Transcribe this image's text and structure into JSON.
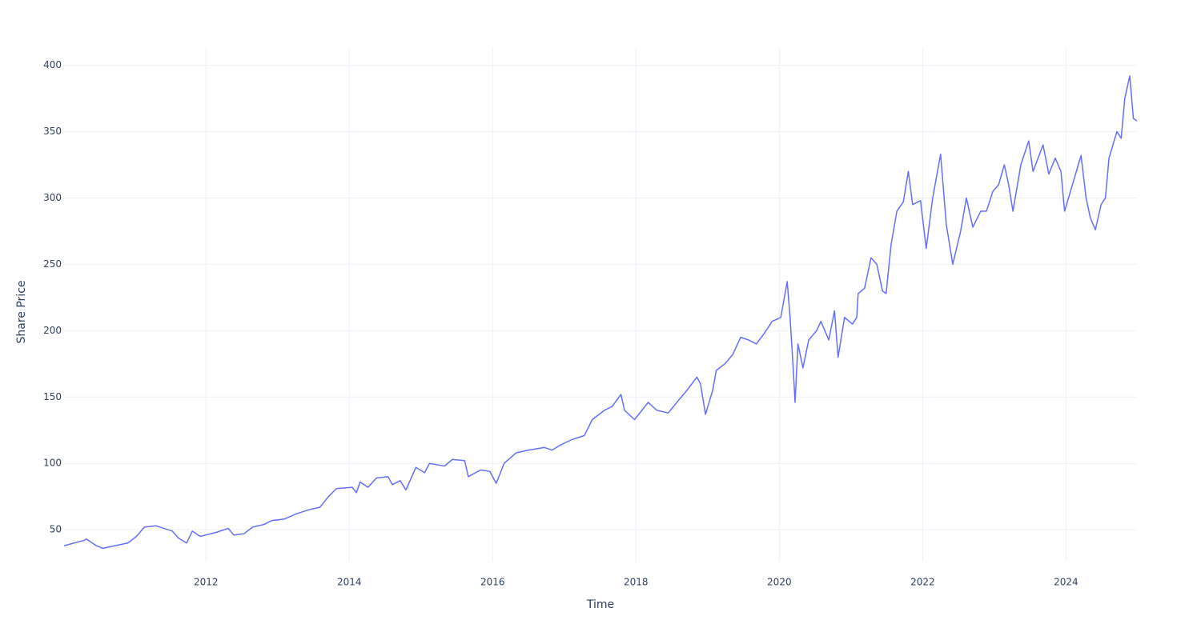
{
  "chart_data": {
    "type": "line",
    "x_label": "Time",
    "y_label": "Share Price",
    "x": [
      2010.02,
      2010.3,
      2010.33,
      2010.47,
      2010.56,
      2010.91,
      2011.03,
      2011.14,
      2011.3,
      2011.53,
      2011.61,
      2011.73,
      2011.81,
      2011.92,
      2012.14,
      2012.31,
      2012.39,
      2012.53,
      2012.65,
      2012.81,
      2012.92,
      2013.09,
      2013.26,
      2013.43,
      2013.59,
      2013.71,
      2013.82,
      2014.04,
      2014.1,
      2014.15,
      2014.26,
      2014.38,
      2014.54,
      2014.6,
      2014.71,
      2014.79,
      2014.88,
      2014.93,
      2015.05,
      2015.12,
      2015.33,
      2015.44,
      2015.61,
      2015.66,
      2015.83,
      2015.96,
      2016.05,
      2016.16,
      2016.33,
      2016.5,
      2016.72,
      2016.83,
      2016.95,
      2017.11,
      2017.28,
      2017.39,
      2017.56,
      2017.67,
      2017.79,
      2017.84,
      2017.98,
      2018.17,
      2018.29,
      2018.45,
      2018.57,
      2018.71,
      2018.85,
      2018.9,
      2018.97,
      2019.07,
      2019.12,
      2019.24,
      2019.35,
      2019.46,
      2019.57,
      2019.68,
      2019.79,
      2019.9,
      2020.02,
      2020.11,
      2020.15,
      2020.19,
      2020.22,
      2020.26,
      2020.33,
      2020.41,
      2020.52,
      2020.58,
      2020.69,
      2020.77,
      2020.82,
      2020.91,
      2021.02,
      2021.08,
      2021.1,
      2021.19,
      2021.28,
      2021.36,
      2021.44,
      2021.49,
      2021.56,
      2021.64,
      2021.73,
      2021.8,
      2021.86,
      2021.97,
      2022.05,
      2022.14,
      2022.25,
      2022.33,
      2022.42,
      2022.53,
      2022.61,
      2022.7,
      2022.81,
      2022.89,
      2022.98,
      2023.06,
      2023.14,
      2023.2,
      2023.26,
      2023.37,
      2023.48,
      2023.54,
      2023.68,
      2023.76,
      2023.85,
      2023.93,
      2023.98,
      2024.09,
      2024.21,
      2024.28,
      2024.34,
      2024.41,
      2024.49,
      2024.55,
      2024.6,
      2024.71,
      2024.77,
      2024.82,
      2024.89,
      2024.94,
      2024.99
    ],
    "series": [
      {
        "name": "Share Price",
        "color": "#636efa",
        "values": [
          38,
          42,
          43,
          38,
          36,
          40,
          45,
          52,
          53,
          49,
          44,
          40,
          49,
          45,
          48,
          51,
          46,
          47,
          52,
          54,
          57,
          58,
          62,
          65,
          67,
          75,
          81,
          82,
          78,
          86,
          82,
          89,
          90,
          84,
          87,
          80,
          91,
          97,
          93,
          100,
          98,
          103,
          102,
          90,
          95,
          94,
          85,
          100,
          108,
          110,
          112,
          110,
          114,
          118,
          121,
          133,
          140,
          143,
          152,
          140,
          133,
          146,
          140,
          138,
          146,
          155,
          165,
          160,
          137,
          155,
          170,
          175,
          182,
          195,
          193,
          190,
          198,
          207,
          210,
          237,
          210,
          175,
          146,
          190,
          172,
          193,
          200,
          207,
          193,
          215,
          180,
          210,
          205,
          210,
          228,
          232,
          255,
          250,
          230,
          228,
          265,
          290,
          297,
          320,
          295,
          298,
          262,
          300,
          333,
          280,
          250,
          275,
          300,
          278,
          290,
          290,
          305,
          310,
          325,
          310,
          290,
          325,
          343,
          320,
          340,
          318,
          330,
          320,
          290,
          310,
          332,
          300,
          285,
          276,
          295,
          300,
          330,
          350,
          345,
          375,
          392,
          360,
          358
        ]
      }
    ],
    "xlim": [
      2010.02,
      2024.99
    ],
    "xticks": [
      2012,
      2014,
      2016,
      2018,
      2020,
      2022,
      2024
    ],
    "ylim": [
      26,
      413
    ],
    "yticks": [
      50,
      100,
      150,
      200,
      250,
      300,
      350,
      400
    ],
    "grid": true
  }
}
